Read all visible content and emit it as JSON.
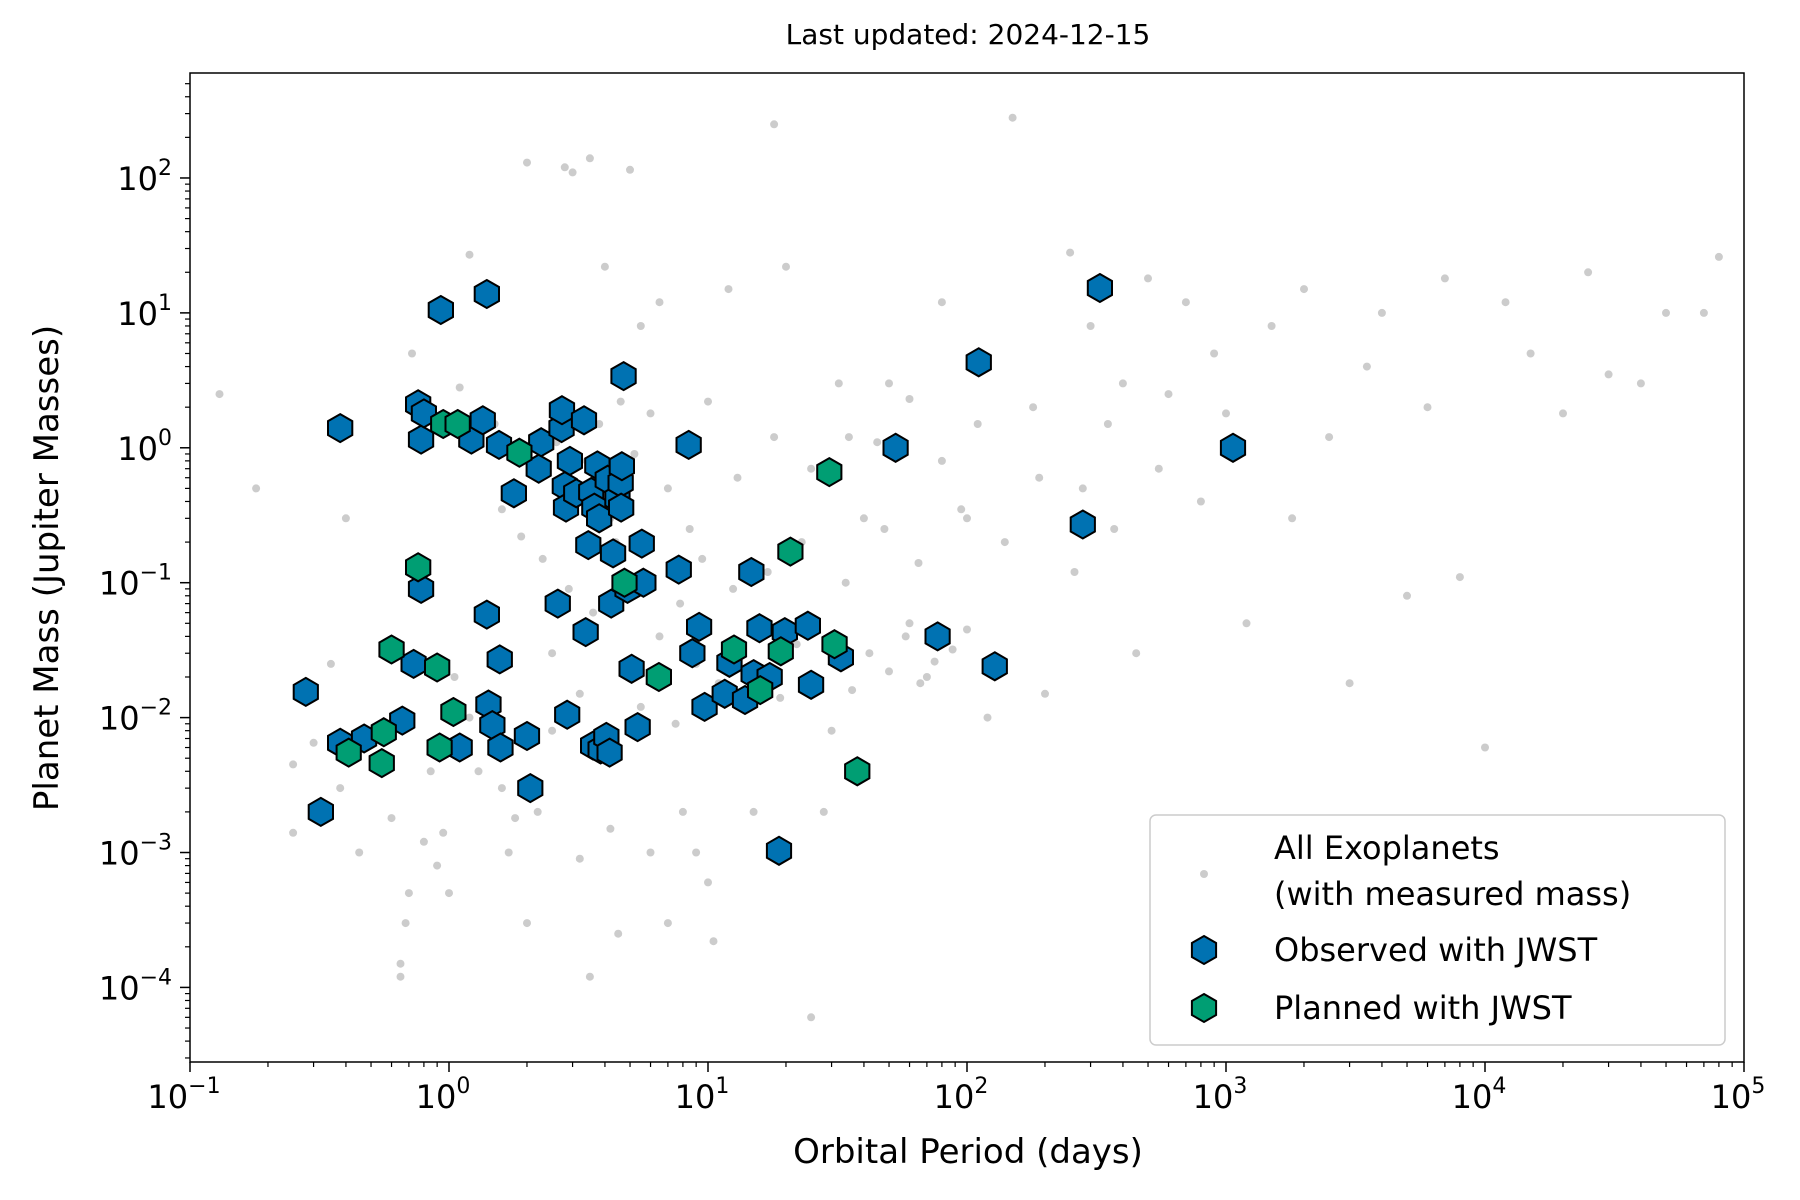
{
  "chart_data": {
    "type": "scatter",
    "title": "Last updated: 2024-12-15",
    "xlabel": "Orbital Period (days)",
    "ylabel": "Planet Mass (Jupiter Masses)",
    "xscale": "log",
    "yscale": "log",
    "xlim": [
      0.1,
      100000
    ],
    "ylim": [
      2.8e-05,
      600
    ],
    "x_ticks": [
      {
        "value": 0.1,
        "base": "10",
        "exp": "−1"
      },
      {
        "value": 1,
        "base": "10",
        "exp": "0"
      },
      {
        "value": 10,
        "base": "10",
        "exp": "1"
      },
      {
        "value": 100,
        "base": "10",
        "exp": "2"
      },
      {
        "value": 1000,
        "base": "10",
        "exp": "3"
      },
      {
        "value": 10000,
        "base": "10",
        "exp": "4"
      },
      {
        "value": 100000,
        "base": "10",
        "exp": "5"
      }
    ],
    "y_ticks": [
      {
        "value": 0.0001,
        "base": "10",
        "exp": "−4"
      },
      {
        "value": 0.001,
        "base": "10",
        "exp": "−3"
      },
      {
        "value": 0.01,
        "base": "10",
        "exp": "−2"
      },
      {
        "value": 0.1,
        "base": "10",
        "exp": "−1"
      },
      {
        "value": 1,
        "base": "10",
        "exp": "0"
      },
      {
        "value": 10,
        "base": "10",
        "exp": "1"
      },
      {
        "value": 100,
        "base": "10",
        "exp": "2"
      }
    ],
    "grid": false,
    "legend_position": "lower-right",
    "series": [
      {
        "name": "All Exoplanets\n(with measured mass)",
        "legend_lines": [
          "All Exoplanets",
          "(with measured mass)"
        ],
        "marker": "circle",
        "color": "#999999",
        "points": [
          [
            0.13,
            2.5
          ],
          [
            0.18,
            0.5
          ],
          [
            0.25,
            0.0045
          ],
          [
            0.25,
            0.0014
          ],
          [
            0.3,
            0.0065
          ],
          [
            0.35,
            0.025
          ],
          [
            0.38,
            0.003
          ],
          [
            0.4,
            0.3
          ],
          [
            0.45,
            0.001
          ],
          [
            0.5,
            0.008
          ],
          [
            0.55,
            0.005
          ],
          [
            0.6,
            0.0018
          ],
          [
            0.65,
            0.00015
          ],
          [
            0.65,
            0.00012
          ],
          [
            0.68,
            0.0003
          ],
          [
            0.7,
            0.0005
          ],
          [
            0.72,
            5
          ],
          [
            0.8,
            0.0012
          ],
          [
            0.85,
            0.004
          ],
          [
            0.9,
            0.0008
          ],
          [
            0.95,
            0.0014
          ],
          [
            1.0,
            0.0005
          ],
          [
            1.05,
            0.02
          ],
          [
            1.1,
            2.8
          ],
          [
            1.2,
            27
          ],
          [
            1.3,
            0.004
          ],
          [
            1.4,
            0.06
          ],
          [
            1.5,
            1.5
          ],
          [
            1.5,
            0.012
          ],
          [
            1.6,
            0.003
          ],
          [
            1.7,
            0.001
          ],
          [
            1.8,
            0.0018
          ],
          [
            2.0,
            0.0003
          ],
          [
            2.0,
            130
          ],
          [
            2.2,
            0.002
          ],
          [
            2.5,
            0.008
          ],
          [
            2.8,
            120
          ],
          [
            3.0,
            110
          ],
          [
            3.2,
            0.0009
          ],
          [
            3.5,
            140
          ],
          [
            3.5,
            0.00012
          ],
          [
            4.0,
            22
          ],
          [
            4.2,
            0.0015
          ],
          [
            4.5,
            0.00025
          ],
          [
            5.0,
            115
          ],
          [
            5.5,
            8
          ],
          [
            6.0,
            0.001
          ],
          [
            6.5,
            12
          ],
          [
            7.0,
            0.0003
          ],
          [
            8.0,
            0.002
          ],
          [
            9.0,
            0.001
          ],
          [
            10.0,
            0.0006
          ],
          [
            10.5,
            0.00022
          ],
          [
            12.0,
            15
          ],
          [
            15.0,
            0.002
          ],
          [
            18.0,
            250
          ],
          [
            20.0,
            22
          ],
          [
            25.0,
            6e-05
          ],
          [
            28.0,
            0.002
          ],
          [
            30.0,
            0.008
          ],
          [
            35.0,
            1.2
          ],
          [
            40.0,
            0.3
          ],
          [
            50.0,
            3
          ],
          [
            60.0,
            0.05
          ],
          [
            70.0,
            0.02
          ],
          [
            80.0,
            12
          ],
          [
            100.0,
            0.3
          ],
          [
            120.0,
            0.01
          ],
          [
            150.0,
            280
          ],
          [
            180.0,
            2
          ],
          [
            200.0,
            0.015
          ],
          [
            250.0,
            28
          ],
          [
            280.0,
            0.5
          ],
          [
            300.0,
            8
          ],
          [
            350.0,
            1.5
          ],
          [
            400.0,
            3
          ],
          [
            450.0,
            0.03
          ],
          [
            500.0,
            18
          ],
          [
            550.0,
            0.7
          ],
          [
            600.0,
            2.5
          ],
          [
            700.0,
            12
          ],
          [
            800.0,
            0.4
          ],
          [
            900.0,
            5
          ],
          [
            1000.0,
            1.8
          ],
          [
            1200.0,
            0.05
          ],
          [
            1500.0,
            8
          ],
          [
            1800.0,
            0.3
          ],
          [
            2000.0,
            15
          ],
          [
            2500.0,
            1.2
          ],
          [
            3000.0,
            0.018
          ],
          [
            3500.0,
            4
          ],
          [
            4000.0,
            10
          ],
          [
            5000.0,
            0.08
          ],
          [
            6000.0,
            2
          ],
          [
            7000.0,
            18
          ],
          [
            8000.0,
            0.11
          ],
          [
            10000.0,
            0.006
          ],
          [
            12000.0,
            12
          ],
          [
            15000.0,
            5
          ],
          [
            20000.0,
            1.8
          ],
          [
            25000.0,
            20
          ],
          [
            30000.0,
            3.5
          ],
          [
            40000.0,
            3
          ],
          [
            50000.0,
            10
          ],
          [
            70000.0,
            10
          ],
          [
            80000.0,
            26
          ],
          [
            0.9,
            0.02
          ],
          [
            1.2,
            0.01
          ],
          [
            2.5,
            0.03
          ],
          [
            3.2,
            0.015
          ],
          [
            4.0,
            0.008
          ],
          [
            5.5,
            0.012
          ],
          [
            6.5,
            0.04
          ],
          [
            7.5,
            0.009
          ],
          [
            9.0,
            0.025
          ],
          [
            11.0,
            0.018
          ],
          [
            13.0,
            0.03
          ],
          [
            16.0,
            0.022
          ],
          [
            19.0,
            0.014
          ],
          [
            22.0,
            0.035
          ],
          [
            26.0,
            0.02
          ],
          [
            30.0,
            0.028
          ],
          [
            36.0,
            0.016
          ],
          [
            42.0,
            0.03
          ],
          [
            50.0,
            0.022
          ],
          [
            58.0,
            0.04
          ],
          [
            66.0,
            0.018
          ],
          [
            75.0,
            0.026
          ],
          [
            88.0,
            0.032
          ],
          [
            100.0,
            0.045
          ],
          [
            2.2,
            0.6
          ],
          [
            2.6,
            1.1
          ],
          [
            3.0,
            0.4
          ],
          [
            3.4,
            0.8
          ],
          [
            3.8,
            1.5
          ],
          [
            4.2,
            0.3
          ],
          [
            4.6,
            2.2
          ],
          [
            5.2,
            0.9
          ],
          [
            6.0,
            1.8
          ],
          [
            7.0,
            0.5
          ],
          [
            8.5,
            0.25
          ],
          [
            10.0,
            2.2
          ],
          [
            13.0,
            0.6
          ],
          [
            18.0,
            1.2
          ],
          [
            25.0,
            0.7
          ],
          [
            32.0,
            3
          ],
          [
            45.0,
            1.1
          ],
          [
            60.0,
            2.3
          ],
          [
            80.0,
            0.8
          ],
          [
            110.0,
            1.5
          ],
          [
            1.6,
            0.35
          ],
          [
            1.9,
            0.22
          ],
          [
            2.3,
            0.15
          ],
          [
            2.9,
            0.09
          ],
          [
            3.6,
            0.06
          ],
          [
            4.4,
            0.2
          ],
          [
            5.8,
            0.11
          ],
          [
            7.8,
            0.07
          ],
          [
            9.5,
            0.15
          ],
          [
            12.5,
            0.09
          ],
          [
            17.0,
            0.12
          ],
          [
            23.0,
            0.2
          ],
          [
            34.0,
            0.1
          ],
          [
            48.0,
            0.25
          ],
          [
            65.0,
            0.14
          ],
          [
            95.0,
            0.35
          ],
          [
            140.0,
            0.2
          ],
          [
            190.0,
            0.6
          ],
          [
            260.0,
            0.12
          ],
          [
            370.0,
            0.25
          ]
        ]
      },
      {
        "name": "Observed with JWST",
        "marker": "hexagon",
        "color": "#0072B2",
        "points": [
          [
            0.28,
            0.0155
          ],
          [
            0.32,
            0.002
          ],
          [
            0.38,
            1.4
          ],
          [
            0.38,
            0.0065
          ],
          [
            0.47,
            0.007
          ],
          [
            0.66,
            0.0095
          ],
          [
            0.73,
            0.025
          ],
          [
            0.76,
            2.1
          ],
          [
            0.78,
            0.09
          ],
          [
            0.78,
            1.15
          ],
          [
            0.8,
            1.8
          ],
          [
            0.93,
            10.5
          ],
          [
            1.1,
            0.006
          ],
          [
            1.22,
            1.15
          ],
          [
            1.35,
            1.6
          ],
          [
            1.4,
            0.058
          ],
          [
            1.4,
            13.8
          ],
          [
            1.42,
            0.0125
          ],
          [
            1.47,
            0.0088
          ],
          [
            1.56,
            1.05
          ],
          [
            1.57,
            0.027
          ],
          [
            1.58,
            0.006
          ],
          [
            1.78,
            0.46
          ],
          [
            2.0,
            0.0073
          ],
          [
            2.06,
            0.003
          ],
          [
            2.22,
            0.7
          ],
          [
            2.27,
            1.1
          ],
          [
            2.63,
            0.07
          ],
          [
            2.72,
            1.4
          ],
          [
            2.73,
            1.9
          ],
          [
            2.8,
            0.52
          ],
          [
            2.83,
            0.36
          ],
          [
            2.86,
            0.0105
          ],
          [
            2.93,
            0.8
          ],
          [
            3.1,
            0.46
          ],
          [
            3.32,
            1.6
          ],
          [
            3.37,
            0.043
          ],
          [
            3.45,
            0.19
          ],
          [
            3.54,
            0.47
          ],
          [
            3.6,
            0.0062
          ],
          [
            3.64,
            0.36
          ],
          [
            3.74,
            0.74
          ],
          [
            3.8,
            0.3
          ],
          [
            3.85,
            0.0058
          ],
          [
            4.05,
            0.0072
          ],
          [
            4.1,
            0.58
          ],
          [
            4.17,
            0.0055
          ],
          [
            4.23,
            0.07
          ],
          [
            4.3,
            0.165
          ],
          [
            4.47,
            0.42
          ],
          [
            4.6,
            0.55
          ],
          [
            4.62,
            0.36
          ],
          [
            4.65,
            0.73
          ],
          [
            4.72,
            3.4
          ],
          [
            4.89,
            0.09
          ],
          [
            5.07,
            0.023
          ],
          [
            5.35,
            0.0085
          ],
          [
            5.55,
            0.195
          ],
          [
            5.63,
            0.1
          ],
          [
            7.71,
            0.125
          ],
          [
            8.42,
            1.05
          ],
          [
            8.7,
            0.03
          ],
          [
            9.24,
            0.047
          ],
          [
            9.7,
            0.012
          ],
          [
            11.6,
            0.015
          ],
          [
            12.1,
            0.0255
          ],
          [
            13.9,
            0.0135
          ],
          [
            14.7,
            0.12
          ],
          [
            15.0,
            0.021
          ],
          [
            15.8,
            0.046
          ],
          [
            17.3,
            0.02
          ],
          [
            18.8,
            0.00103
          ],
          [
            19.8,
            0.043
          ],
          [
            24.3,
            0.048
          ],
          [
            25.0,
            0.0175
          ],
          [
            32.6,
            0.028
          ],
          [
            53.0,
            1.0
          ],
          [
            77.0,
            0.04
          ],
          [
            111.0,
            4.3
          ],
          [
            128.0,
            0.024
          ],
          [
            280.0,
            0.27
          ],
          [
            326.0,
            15.3
          ],
          [
            1064.0,
            1.0
          ]
        ]
      },
      {
        "name": "Planned with JWST",
        "marker": "hexagon",
        "color": "#009E73",
        "points": [
          [
            0.41,
            0.0055
          ],
          [
            0.55,
            0.0046
          ],
          [
            0.56,
            0.0078
          ],
          [
            0.6,
            0.032
          ],
          [
            0.76,
            0.13
          ],
          [
            0.9,
            0.0235
          ],
          [
            0.92,
            0.006
          ],
          [
            0.95,
            1.5
          ],
          [
            1.04,
            0.011
          ],
          [
            1.08,
            1.5
          ],
          [
            1.87,
            0.92
          ],
          [
            4.76,
            0.1
          ],
          [
            6.46,
            0.02
          ],
          [
            12.6,
            0.032
          ],
          [
            15.9,
            0.016
          ],
          [
            19.1,
            0.031
          ],
          [
            20.8,
            0.17
          ],
          [
            29.4,
            0.66
          ],
          [
            30.8,
            0.035
          ],
          [
            37.7,
            0.004
          ]
        ]
      }
    ]
  },
  "legend": {
    "all_line1": "All Exoplanets",
    "all_line2": "(with measured mass)",
    "observed": "Observed with JWST",
    "planned": "Planned with JWST"
  },
  "colors": {
    "all": "#999999",
    "observed": "#0072B2",
    "planned": "#009E73",
    "edge": "#000000"
  }
}
